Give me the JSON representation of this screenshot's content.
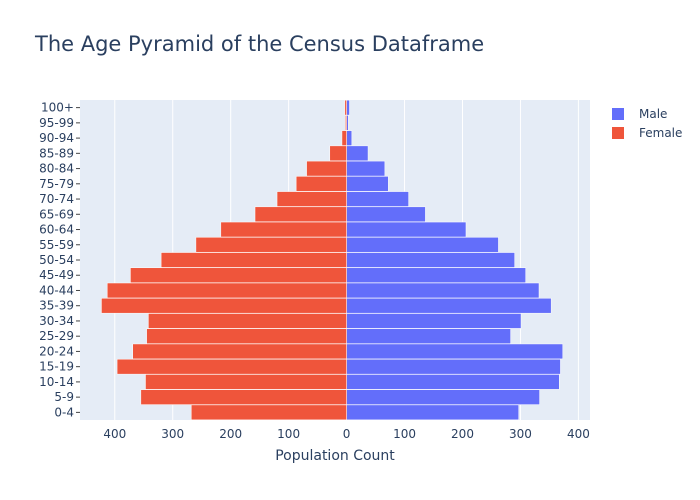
{
  "chart_data": {
    "type": "bar",
    "orientation": "horizontal",
    "title": "The Age Pyramid of the Census Dataframe",
    "xlabel": "Population Count",
    "ylabel": "",
    "xlim": [
      -460,
      420
    ],
    "x_ticks": [
      {
        "value": -400,
        "label": "400"
      },
      {
        "value": -300,
        "label": "300"
      },
      {
        "value": -200,
        "label": "200"
      },
      {
        "value": -100,
        "label": "100"
      },
      {
        "value": 0,
        "label": "0"
      },
      {
        "value": 100,
        "label": "100"
      },
      {
        "value": 200,
        "label": "200"
      },
      {
        "value": 300,
        "label": "300"
      },
      {
        "value": 400,
        "label": "400"
      }
    ],
    "categories": [
      "0-4",
      "5-9",
      "10-14",
      "15-19",
      "20-24",
      "25-29",
      "30-34",
      "35-39",
      "40-44",
      "45-49",
      "50-54",
      "55-59",
      "60-64",
      "65-69",
      "70-74",
      "75-79",
      "80-84",
      "85-89",
      "90-94",
      "95-99",
      "100+"
    ],
    "series": [
      {
        "name": "Male",
        "color": "#636efa",
        "values": [
          297,
          333,
          367,
          369,
          373,
          283,
          301,
          353,
          332,
          309,
          290,
          262,
          206,
          136,
          107,
          72,
          66,
          37,
          9,
          3,
          5
        ]
      },
      {
        "name": "Female",
        "color": "#ef553b",
        "values": [
          -268,
          -355,
          -347,
          -396,
          -369,
          -345,
          -342,
          -423,
          -413,
          -373,
          -320,
          -260,
          -217,
          -158,
          -120,
          -87,
          -69,
          -29,
          -8,
          -2,
          -3
        ]
      }
    ],
    "legend_position": "top-right",
    "grid": true,
    "plot_bgcolor": "#e5ecf6"
  }
}
